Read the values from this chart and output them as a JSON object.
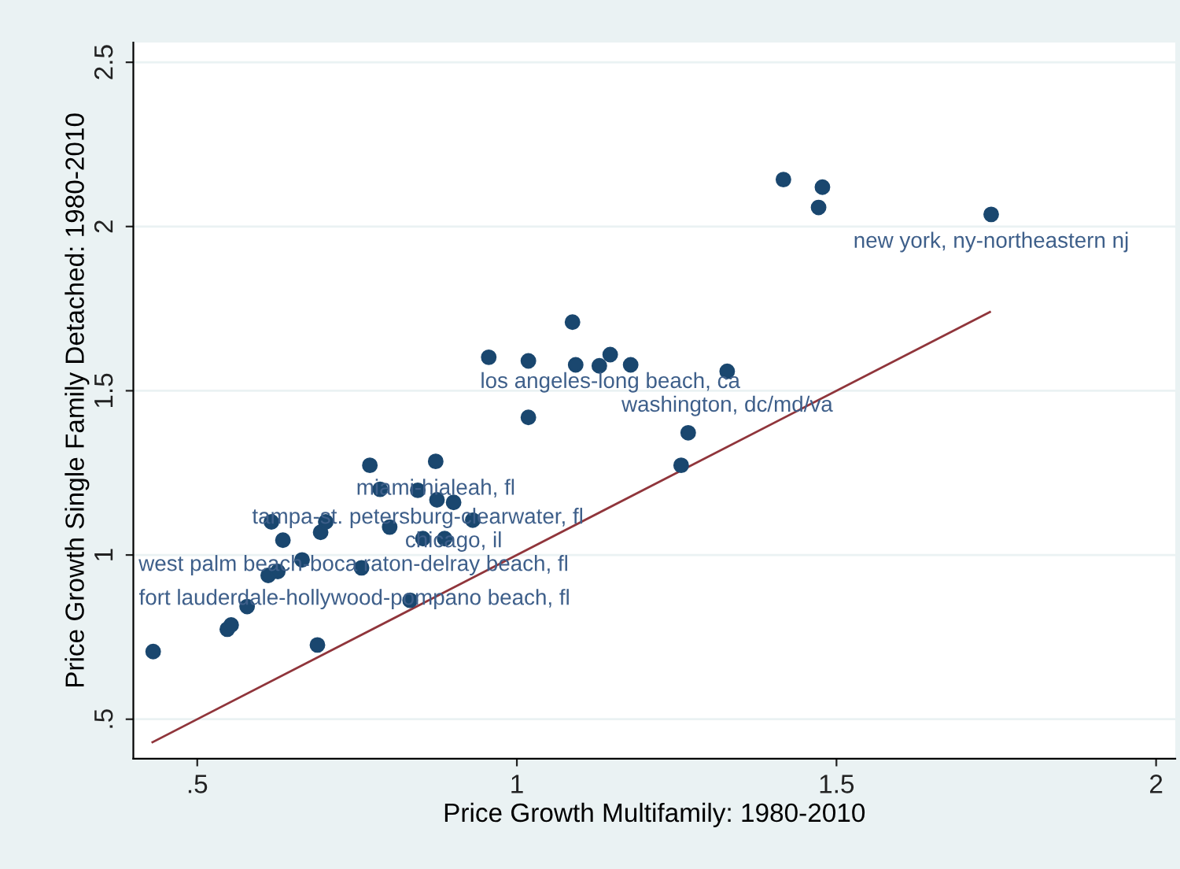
{
  "chart_data": {
    "type": "scatter",
    "xlabel": "Price Growth Multifamily: 1980-2010",
    "ylabel": "Price Growth Single Family Detached: 1980-2010",
    "xlim": [
      0.4,
      2.03
    ],
    "ylim": [
      0.38,
      2.56
    ],
    "xticks": [
      {
        "value": 0.5,
        "label": ".5"
      },
      1,
      1.5,
      2
    ],
    "yticks": [
      {
        "value": 0.5,
        "label": ".5"
      },
      1,
      1.5,
      2,
      2.5
    ],
    "grid": "y",
    "series": [
      {
        "color": "#1a476f",
        "marker": "circle",
        "x": [
          0.431,
          0.547,
          0.553,
          0.578,
          0.611,
          0.626,
          0.634,
          0.616,
          0.664,
          0.688,
          0.693,
          0.701,
          0.77,
          0.786,
          0.757,
          0.801,
          0.833,
          0.845,
          0.873,
          0.875,
          0.901,
          0.853,
          0.887,
          0.931,
          0.956,
          1.018,
          1.087,
          1.092,
          1.129,
          1.146,
          1.178,
          1.329,
          1.018,
          1.268,
          1.257,
          1.417,
          1.478,
          1.472,
          1.742
        ],
        "values": [
          0.706,
          0.774,
          0.787,
          0.843,
          0.938,
          0.95,
          1.045,
          1.101,
          0.985,
          0.726,
          1.069,
          1.101,
          1.273,
          1.2,
          0.961,
          1.085,
          0.862,
          1.197,
          1.285,
          1.168,
          1.16,
          1.05,
          1.05,
          1.106,
          1.602,
          1.591,
          1.709,
          1.579,
          1.576,
          1.61,
          1.579,
          1.559,
          1.419,
          1.372,
          1.273,
          2.143,
          2.12,
          2.058,
          2.037
        ]
      },
      {
        "type": "line",
        "marker": "none",
        "color": "#90353b",
        "x": [
          0.43,
          1.74
        ],
        "values": [
          0.43,
          1.74
        ]
      }
    ],
    "annotations": [
      {
        "text": "new york, ny-northeastern nj",
        "x": 1.742,
        "y": 2.037
      },
      {
        "text": "los angeles-long beach, ca",
        "x": 1.146,
        "y": 1.61
      },
      {
        "text": "washington, dc/md/va",
        "x": 1.329,
        "y": 1.559
      },
      {
        "text": "miami-hialeah, fl",
        "x": 0.873,
        "y": 1.285
      },
      {
        "text": "tampa-st. petersburg-clearwater, fl",
        "x": 0.845,
        "y": 1.197
      },
      {
        "text": "chicago, il",
        "x": 0.901,
        "y": 1.16
      },
      {
        "text": "west palm beach-boca raton-delray beach, fl",
        "x": 0.616,
        "y": 1.101
      },
      {
        "text": "fort lauderdale-hollywood-pompano beach, fl",
        "x": 0.626,
        "y": 0.95
      }
    ]
  }
}
